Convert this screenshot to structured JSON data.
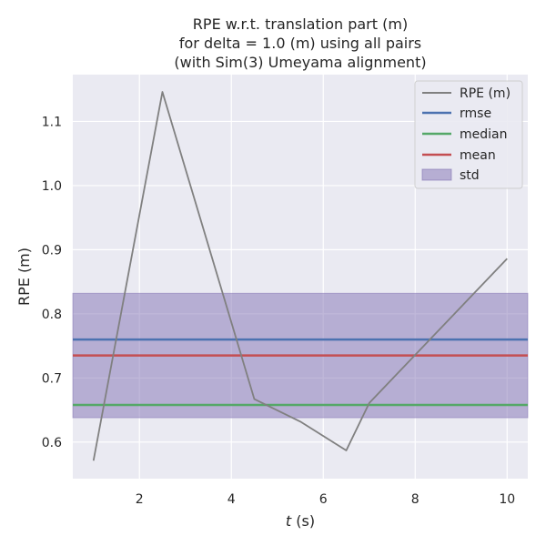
{
  "chart_data": {
    "type": "line",
    "title_lines": [
      "RPE w.r.t. translation part (m)",
      "for delta = 1.0 (m) using all pairs",
      "(with Sim(3) Umeyama alignment)"
    ],
    "xlabel_italic": "t",
    "xlabel_rest": " (s)",
    "ylabel": "RPE (m)",
    "xlim": [
      0.55,
      10.45
    ],
    "ylim": [
      0.543,
      1.173
    ],
    "xticks": [
      2,
      4,
      6,
      8,
      10
    ],
    "xtick_labels": [
      "2",
      "4",
      "6",
      "8",
      "10"
    ],
    "yticks": [
      0.6,
      0.7,
      0.8,
      0.9,
      1.0,
      1.1
    ],
    "ytick_labels": [
      "0.6",
      "0.7",
      "0.8",
      "0.9",
      "1.0",
      "1.1"
    ],
    "grid": true,
    "legend_position": "top-right",
    "series": [
      {
        "name": "RPE (m)",
        "color": "#808080",
        "x": [
          1.0,
          2.5,
          4.5,
          5.5,
          6.5,
          7.0,
          10.0
        ],
        "y": [
          0.571,
          1.146,
          0.667,
          0.632,
          0.587,
          0.661,
          0.886
        ]
      }
    ],
    "stats": {
      "rmse": {
        "label": "rmse",
        "value": 0.76,
        "color": "#4c72b0"
      },
      "median": {
        "label": "median",
        "value": 0.658,
        "color": "#55a868"
      },
      "mean": {
        "label": "mean",
        "value": 0.735,
        "color": "#c44e52"
      },
      "std": {
        "label": "std",
        "low": 0.638,
        "high": 0.832,
        "color": "#8172b3"
      }
    },
    "legend_entries": [
      "RPE (m)",
      "rmse",
      "median",
      "mean",
      "std"
    ]
  }
}
